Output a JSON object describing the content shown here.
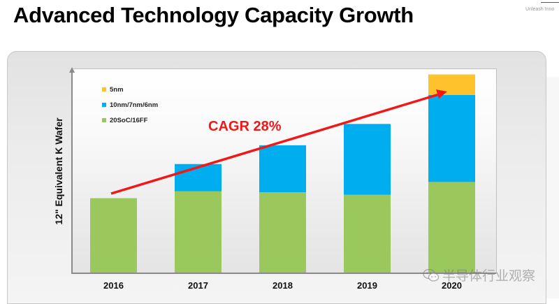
{
  "header": {
    "title": "Advanced Technology Capacity Growth",
    "brand_tagline": "Unleash Inno"
  },
  "watermark": {
    "icon": "wechat-icon",
    "text": "半导体行业观察"
  },
  "colors": {
    "5nm": "#FDC22C",
    "10nm/7nm/6nm": "#00AEEF",
    "20SoC/16FF": "#9BC85C",
    "trend": "#F01818"
  },
  "chart_data": {
    "type": "bar",
    "stacked": true,
    "title": "Advanced Technology Capacity Growth",
    "xlabel": "",
    "ylabel": "12\"  Equivalent K Wafer",
    "categories": [
      "2016",
      "2017",
      "2018",
      "2019",
      "2020"
    ],
    "series": [
      {
        "name": "20SoC/16FF",
        "values": [
          88,
          96,
          95,
          92,
          107
        ]
      },
      {
        "name": "10nm/7nm/6nm",
        "values": [
          0,
          32,
          55,
          83,
          102
        ]
      },
      {
        "name": "5nm",
        "values": [
          0,
          0,
          0,
          0,
          24
        ]
      }
    ],
    "ylim": [
      0,
      240
    ],
    "ytick_labels": [],
    "grid": false,
    "legend": {
      "position": "top-left",
      "order": [
        "5nm",
        "10nm/7nm/6nm",
        "20SoC/16FF"
      ]
    },
    "annotations": [
      {
        "type": "arrow",
        "label": "CAGR 28%",
        "from_category": "2016",
        "to_category": "2020",
        "direction": "increasing"
      }
    ],
    "units_note": "relative (axis unlabeled)"
  }
}
